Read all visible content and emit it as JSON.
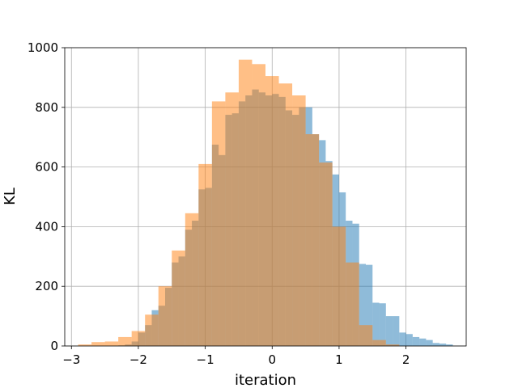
{
  "chart_data": {
    "type": "bar",
    "subtype": "overlapping-histogram",
    "title": "",
    "xlabel": "iteration",
    "ylabel": "KL",
    "xlim": [
      -3.1,
      2.9
    ],
    "ylim": [
      0,
      1000
    ],
    "xticks": [
      -3,
      -2,
      -1,
      0,
      1,
      2
    ],
    "yticks": [
      0,
      200,
      400,
      600,
      800,
      1000
    ],
    "grid": true,
    "legend": "none",
    "series": [
      {
        "color": "#1f77b4",
        "opacity": 0.5,
        "bin_edges": [
          -2.3,
          -2.2,
          -2.1,
          -2.0,
          -1.9,
          -1.8,
          -1.7,
          -1.6,
          -1.5,
          -1.4,
          -1.3,
          -1.2,
          -1.1,
          -1.0,
          -0.9,
          -0.8,
          -0.7,
          -0.6,
          -0.5,
          -0.4,
          -0.3,
          -0.2,
          -0.1,
          0.0,
          0.1,
          0.2,
          0.3,
          0.4,
          0.5,
          0.6,
          0.7,
          0.8,
          0.9,
          1.0,
          1.1,
          1.2,
          1.3,
          1.4,
          1.5,
          1.6,
          1.7,
          1.8,
          1.9,
          2.0,
          2.1,
          2.2,
          2.3,
          2.4,
          2.5,
          2.6,
          2.7
        ],
        "counts": [
          2,
          5,
          15,
          45,
          70,
          120,
          135,
          195,
          280,
          300,
          390,
          420,
          525,
          530,
          675,
          640,
          775,
          780,
          820,
          840,
          860,
          850,
          840,
          845,
          835,
          790,
          775,
          800,
          800,
          710,
          690,
          620,
          575,
          515,
          420,
          410,
          275,
          272,
          145,
          143,
          100,
          100,
          45,
          40,
          30,
          25,
          20,
          10,
          8,
          5
        ]
      },
      {
        "color": "#ff7f0e",
        "opacity": 0.5,
        "bin_edges": [
          -2.9,
          -2.7,
          -2.5,
          -2.3,
          -2.1,
          -1.9,
          -1.7,
          -1.5,
          -1.3,
          -1.1,
          -0.9,
          -0.7,
          -0.5,
          -0.3,
          -0.1,
          0.1,
          0.3,
          0.5,
          0.7,
          0.9,
          1.1,
          1.3,
          1.5,
          1.7,
          1.9
        ],
        "counts": [
          5,
          13,
          15,
          30,
          50,
          105,
          200,
          320,
          445,
          610,
          820,
          850,
          960,
          945,
          905,
          880,
          840,
          710,
          615,
          400,
          280,
          70,
          20,
          5
        ]
      }
    ]
  }
}
